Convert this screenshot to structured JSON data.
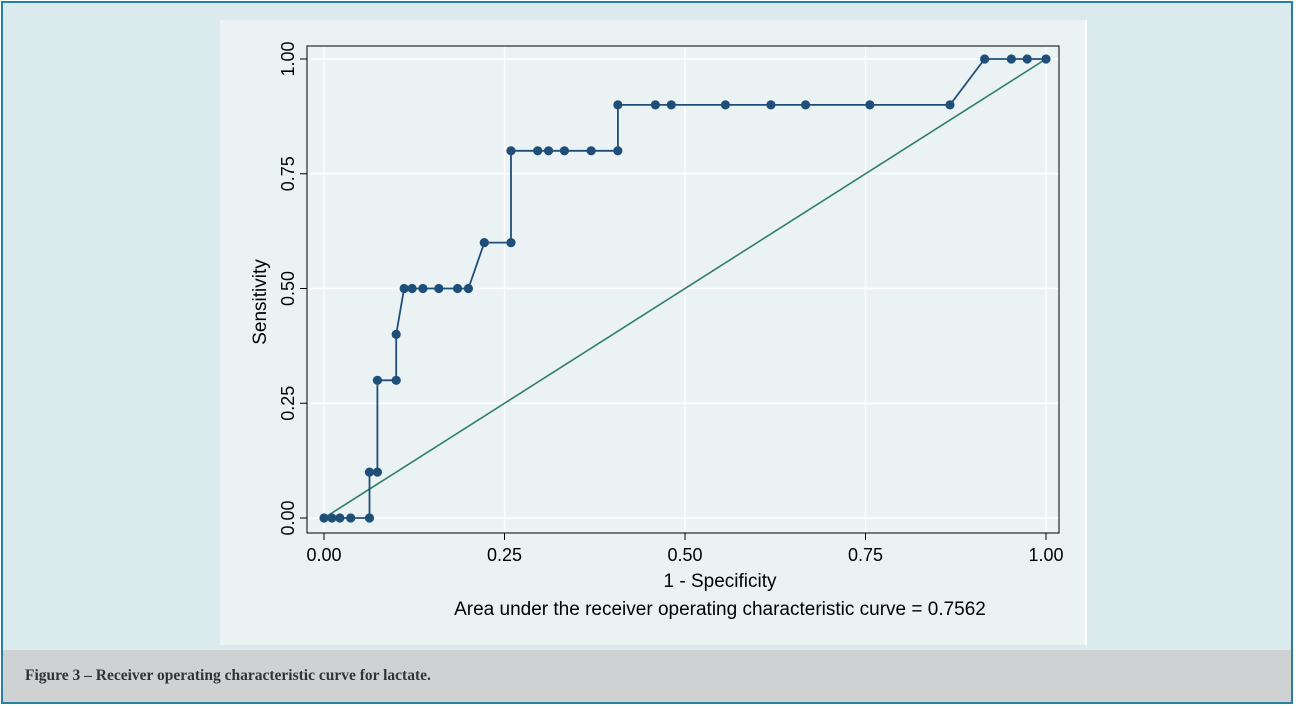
{
  "figure": {
    "caption": "Figure 3 – Receiver operating characteristic curve for lactate."
  },
  "colors": {
    "frame_border": "#2a7f9a",
    "background": "#dbebed",
    "plot_panel": "#eaf2f3",
    "caption_bar": "#cfd2d3",
    "roc_curve": "#1f4e79",
    "reference_line": "#2e7d6e"
  },
  "chart_data": {
    "type": "line",
    "title": "",
    "xlabel": "1 - Specificity",
    "ylabel": "Sensitivity",
    "note": "Area under the receiver operating characteristic curve = 0.7562",
    "xlim": [
      0,
      1
    ],
    "ylim": [
      0,
      1
    ],
    "x_ticks": [
      "0.00",
      "0.25",
      "0.50",
      "0.75",
      "1.00"
    ],
    "y_ticks": [
      "0.00",
      "0.25",
      "0.50",
      "0.75",
      "1.00"
    ],
    "grid": true,
    "series": [
      {
        "kind": "roc-step",
        "x": [
          0,
          0.011,
          0.022,
          0.037,
          0.063,
          0.063,
          0.074,
          0.074,
          0.1,
          0.1,
          0.111,
          0.122,
          0.137,
          0.159,
          0.185,
          0.2,
          0.222,
          0.259,
          0.259,
          0.296,
          0.311,
          0.333,
          0.37,
          0.407,
          0.407,
          0.459,
          0.481,
          0.556,
          0.619,
          0.667,
          0.756,
          0.867,
          0.915,
          0.952,
          0.974,
          1.0
        ],
        "y": [
          0,
          0,
          0,
          0,
          0,
          0.1,
          0.1,
          0.3,
          0.3,
          0.4,
          0.5,
          0.5,
          0.5,
          0.5,
          0.5,
          0.5,
          0.6,
          0.6,
          0.8,
          0.8,
          0.8,
          0.8,
          0.8,
          0.8,
          0.9,
          0.9,
          0.9,
          0.9,
          0.9,
          0.9,
          0.9,
          0.9,
          1.0,
          1.0,
          1.0,
          1.0
        ]
      },
      {
        "kind": "reference-diagonal",
        "x": [
          0,
          1
        ],
        "y": [
          0,
          1
        ]
      }
    ]
  }
}
